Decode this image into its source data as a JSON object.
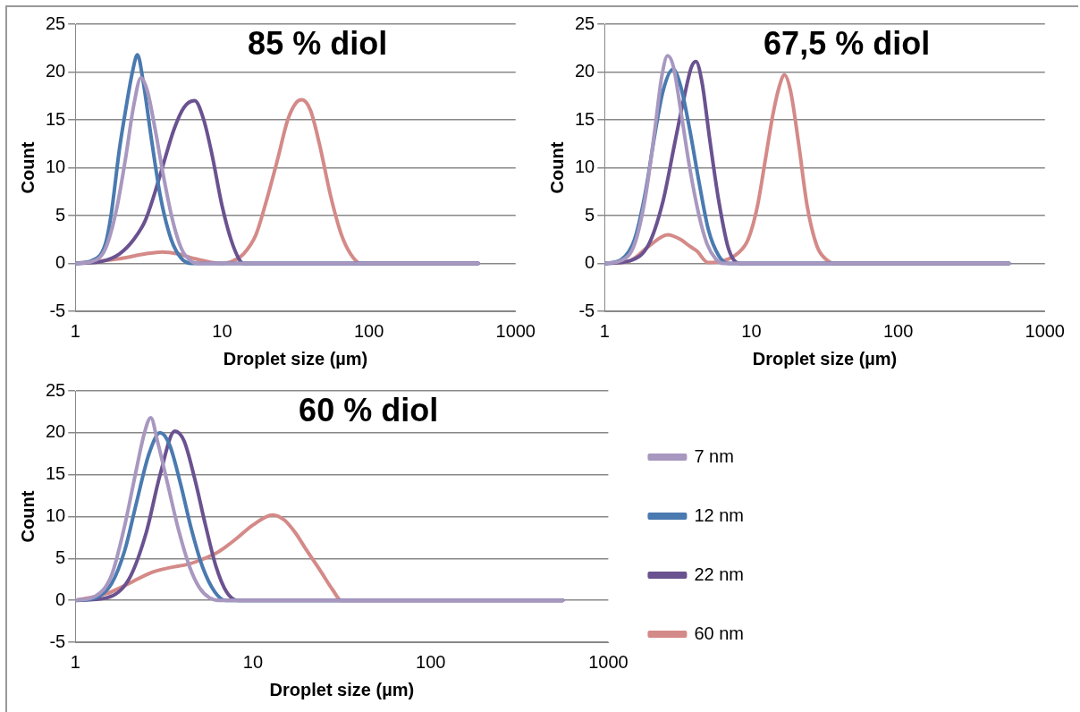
{
  "chart_data": [
    {
      "type": "line",
      "title": "85 % diol",
      "xlabel": "Droplet size (µm)",
      "ylabel": "Count",
      "log": "x",
      "xlim": [
        1,
        1000
      ],
      "xticks": [
        1,
        10,
        100,
        1000
      ],
      "ylim": [
        -5,
        25
      ],
      "yticks": [
        -5,
        0,
        5,
        10,
        15,
        20,
        25
      ],
      "grid": "y",
      "marker": "none",
      "legend": false,
      "series": [
        {
          "color": "#a898c0",
          "x": [
            1,
            1.3,
            1.6,
            1.9,
            2.2,
            2.5,
            2.8,
            3.1,
            3.5,
            4,
            4.6,
            5.3,
            6.2,
            7,
            10,
            100,
            556
          ],
          "values": [
            0,
            0.2,
            1.5,
            5.5,
            11,
            16.5,
            19.4,
            18,
            14,
            9,
            4.5,
            1.5,
            0.2,
            0,
            0,
            0,
            0
          ]
        },
        {
          "color": "#4a7ab0",
          "x": [
            1,
            1.3,
            1.6,
            1.75,
            2,
            2.2,
            2.45,
            2.65,
            2.9,
            3.3,
            3.8,
            4.5,
            5.3,
            6.2,
            10,
            100,
            556
          ],
          "values": [
            0,
            0.3,
            2,
            5,
            12,
            16,
            20,
            21.8,
            19,
            13,
            7,
            2.5,
            0.5,
            0,
            0,
            0,
            0
          ]
        },
        {
          "color": "#6a5290",
          "x": [
            1,
            1.5,
            2,
            2.5,
            3,
            3.5,
            4,
            4.7,
            5.5,
            6.5,
            7.5,
            8.5,
            10,
            11.5,
            13,
            14,
            100,
            556
          ],
          "values": [
            0,
            0.2,
            1,
            2.5,
            4.5,
            7.5,
            10.5,
            14,
            16.3,
            17,
            15,
            11.5,
            6,
            2.5,
            0.5,
            0,
            0,
            0
          ]
        },
        {
          "color": "#d48a88",
          "x": [
            1,
            2,
            3,
            3.9,
            5,
            6.5,
            8.5,
            10,
            12,
            14,
            17,
            20,
            24,
            28,
            32,
            35,
            40,
            46,
            55,
            65,
            75,
            88,
            100,
            556
          ],
          "values": [
            0,
            0.5,
            1,
            1.2,
            1,
            0.5,
            0.1,
            0,
            0.3,
            1,
            3,
            6.5,
            11,
            15,
            16.8,
            17.1,
            16,
            12.5,
            7,
            3,
            1,
            0,
            0,
            0
          ]
        }
      ]
    },
    {
      "type": "line",
      "title": "67,5 % diol",
      "xlabel": "Droplet size (µm)",
      "ylabel": "Count",
      "log": "x",
      "xlim": [
        1,
        1000
      ],
      "xticks": [
        1,
        10,
        100,
        1000
      ],
      "ylim": [
        -5,
        25
      ],
      "yticks": [
        -5,
        0,
        5,
        10,
        15,
        20,
        25
      ],
      "grid": "y",
      "marker": "none",
      "legend": false,
      "series": [
        {
          "color": "#a898c0",
          "x": [
            1,
            1.3,
            1.6,
            1.9,
            2.2,
            2.45,
            2.69,
            2.95,
            3.3,
            3.8,
            4.4,
            5,
            5.7,
            6.4,
            10,
            100,
            569
          ],
          "values": [
            0,
            0.3,
            2,
            7,
            14,
            19.5,
            21.7,
            20.5,
            16,
            10,
            5,
            2,
            0.5,
            0,
            0,
            0,
            0
          ]
        },
        {
          "color": "#4a7ab0",
          "x": [
            1,
            1.3,
            1.6,
            1.9,
            2.2,
            2.5,
            2.93,
            3.3,
            3.8,
            4.4,
            5.1,
            6,
            6.96,
            10,
            100,
            569
          ],
          "values": [
            0,
            0.4,
            2.5,
            7.5,
            13.5,
            18,
            20.3,
            18.5,
            14,
            8.5,
            3.5,
            0.8,
            0,
            0,
            0,
            0
          ]
        },
        {
          "color": "#6a5290",
          "x": [
            1,
            1.5,
            2,
            2.5,
            3,
            3.5,
            3.9,
            4.19,
            4.6,
            5.2,
            6,
            7,
            8.3,
            10,
            100,
            569
          ],
          "values": [
            0,
            0.3,
            2,
            6.5,
            12.5,
            17.5,
            20.5,
            21.1,
            19,
            13,
            6.5,
            1.5,
            0,
            0,
            0,
            0
          ]
        },
        {
          "color": "#d48a88",
          "x": [
            1,
            1.5,
            2,
            2.69,
            3.3,
            3.8,
            4.25,
            5.06,
            6.5,
            8,
            9.5,
            11,
            12.5,
            14,
            15.5,
            16.8,
            18.5,
            21,
            24,
            28,
            33,
            37,
            100,
            569
          ],
          "values": [
            0,
            0.3,
            1.8,
            3,
            2.5,
            1.8,
            1.3,
            0.1,
            0.3,
            1,
            2.5,
            6,
            11,
            15.5,
            18.5,
            19.7,
            18,
            12.5,
            6,
            1.8,
            0.3,
            0,
            0,
            0
          ]
        }
      ]
    },
    {
      "type": "line",
      "title": "60 % diol",
      "xlabel": "Droplet size (µm)",
      "ylabel": "Count",
      "log": "x",
      "xlim": [
        1,
        1000
      ],
      "xticks": [
        1,
        10,
        100,
        1000
      ],
      "ylim": [
        -5,
        25
      ],
      "yticks": [
        -5,
        0,
        5,
        10,
        15,
        20,
        25
      ],
      "grid": "y",
      "marker": "none",
      "legend": "right",
      "series": [
        {
          "name": "7 nm",
          "color": "#a898c0",
          "x": [
            1,
            1.3,
            1.6,
            1.9,
            2.2,
            2.45,
            2.66,
            2.9,
            3.3,
            3.8,
            4.4,
            5,
            5.7,
            6.4,
            10,
            100,
            554
          ],
          "values": [
            0,
            0.5,
            3,
            9,
            15.5,
            20,
            21.8,
            19,
            14,
            8.5,
            4,
            1.5,
            0.3,
            0,
            0,
            0,
            0
          ]
        },
        {
          "name": "12 nm",
          "color": "#4a7ab0",
          "x": [
            1,
            1.3,
            1.6,
            1.9,
            2.2,
            2.6,
            3,
            3.4,
            3.9,
            4.5,
            5.2,
            6.1,
            7,
            10,
            100,
            554
          ],
          "values": [
            0,
            0.3,
            2,
            6,
            11.5,
            17.5,
            20,
            18.5,
            14,
            8.5,
            4,
            1,
            0,
            0,
            0,
            0
          ]
        },
        {
          "name": "22 nm",
          "color": "#6a5290",
          "x": [
            1,
            1.5,
            2,
            2.5,
            3,
            3.63,
            4.1,
            4.7,
            5.4,
            6.2,
            7.1,
            8.2,
            10,
            100,
            554
          ],
          "values": [
            0,
            0.3,
            2.5,
            8,
            15,
            20.2,
            19,
            14.5,
            9,
            4,
            1,
            0,
            0,
            0,
            0
          ]
        },
        {
          "name": "60 nm",
          "color": "#d48a88",
          "x": [
            1,
            1.5,
            2,
            2.66,
            3.4,
            4.3,
            5.2,
            6.4,
            8,
            10,
            12.9,
            15,
            17.4,
            20,
            24,
            28,
            31.4,
            100,
            554
          ],
          "values": [
            0,
            0.8,
            2,
            3.3,
            3.9,
            4.3,
            4.9,
            5.8,
            7.3,
            9,
            10.2,
            9.6,
            8,
            6,
            3.5,
            1.3,
            0,
            0,
            0
          ]
        }
      ]
    }
  ]
}
